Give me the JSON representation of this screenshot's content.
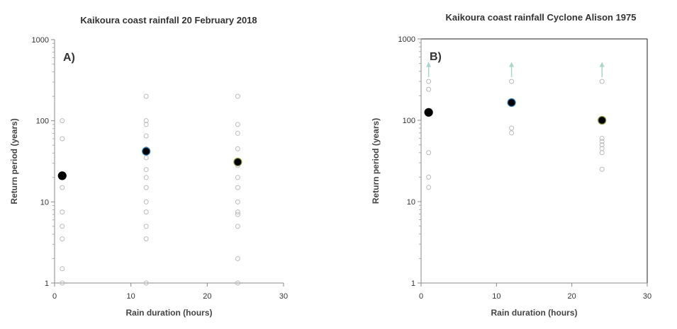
{
  "chart_data": [
    {
      "type": "scatter",
      "title": "Kaikoura coast rainfall 20 February 2018",
      "panel_label": "A)",
      "xlabel": "Rain duration (hours)",
      "ylabel": "Return period (years)",
      "xlim": [
        0,
        30
      ],
      "ylim": [
        1,
        1000
      ],
      "yscale": "log",
      "xticks": [
        "0",
        "10",
        "20",
        "30"
      ],
      "yticks": [
        "1",
        "10",
        "100",
        "1000"
      ],
      "grid": false,
      "frame": false,
      "series": [
        {
          "role": "stations",
          "marker": "open-circle",
          "color": "#bbbbbb",
          "points": [
            [
              1,
              100
            ],
            [
              1,
              60
            ],
            [
              1,
              15
            ],
            [
              1,
              7.5
            ],
            [
              1,
              5
            ],
            [
              1,
              3.5
            ],
            [
              1,
              1.5
            ],
            [
              1,
              1
            ],
            [
              12,
              200
            ],
            [
              12,
              100
            ],
            [
              12,
              90
            ],
            [
              12,
              65
            ],
            [
              12,
              45
            ],
            [
              12,
              35
            ],
            [
              12,
              25
            ],
            [
              12,
              20
            ],
            [
              12,
              15
            ],
            [
              12,
              10
            ],
            [
              12,
              7.5
            ],
            [
              12,
              5
            ],
            [
              12,
              3.5
            ],
            [
              12,
              1
            ],
            [
              24,
              200
            ],
            [
              24,
              90
            ],
            [
              24,
              70
            ],
            [
              24,
              45
            ],
            [
              24,
              28
            ],
            [
              24,
              20
            ],
            [
              24,
              15
            ],
            [
              24,
              10
            ],
            [
              24,
              7.5
            ],
            [
              24,
              7
            ],
            [
              24,
              5
            ],
            [
              24,
              2
            ],
            [
              24,
              1
            ]
          ]
        },
        {
          "role": "representative",
          "marker": "filled-circle",
          "color": "#000000",
          "points": [
            {
              "x": 1,
              "y": 21,
              "edge": "#000000"
            },
            {
              "x": 12,
              "y": 42,
              "edge": "#2e7fc0"
            },
            {
              "x": 24,
              "y": 31,
              "edge": "#8a9a3a"
            }
          ]
        }
      ],
      "arrows": []
    },
    {
      "type": "scatter",
      "title": "Kaikoura coast rainfall Cyclone Alison 1975",
      "panel_label": "B)",
      "xlabel": "Rain duration (hours)",
      "ylabel": "Return period (years)",
      "xlim": [
        0,
        30
      ],
      "ylim": [
        1,
        1000
      ],
      "yscale": "log",
      "xticks": [
        "0",
        "10",
        "20",
        "30"
      ],
      "yticks": [
        "1",
        "10",
        "100",
        "1000"
      ],
      "grid": false,
      "frame": true,
      "series": [
        {
          "role": "stations",
          "marker": "open-circle",
          "color": "#bbbbbb",
          "points": [
            [
              1,
              300
            ],
            [
              1,
              240
            ],
            [
              1,
              40
            ],
            [
              1,
              20
            ],
            [
              1,
              15
            ],
            [
              12,
              300
            ],
            [
              12,
              80
            ],
            [
              12,
              70
            ],
            [
              24,
              300
            ],
            [
              24,
              60
            ],
            [
              24,
              55
            ],
            [
              24,
              50
            ],
            [
              24,
              45
            ],
            [
              24,
              40
            ],
            [
              24,
              25
            ]
          ]
        },
        {
          "role": "representative",
          "marker": "filled-circle",
          "color": "#000000",
          "points": [
            {
              "x": 1,
              "y": 125,
              "edge": "#000000"
            },
            {
              "x": 12,
              "y": 165,
              "edge": "#2e7fc0"
            },
            {
              "x": 24,
              "y": 100,
              "edge": "#8a9a3a"
            }
          ]
        }
      ],
      "arrows": [
        {
          "x": 1,
          "from": 300,
          "to": 500,
          "color": "#a8d8cc"
        },
        {
          "x": 12,
          "from": 300,
          "to": 500,
          "color": "#a8d8cc"
        },
        {
          "x": 24,
          "from": 300,
          "to": 500,
          "color": "#a8d8cc"
        }
      ]
    }
  ]
}
